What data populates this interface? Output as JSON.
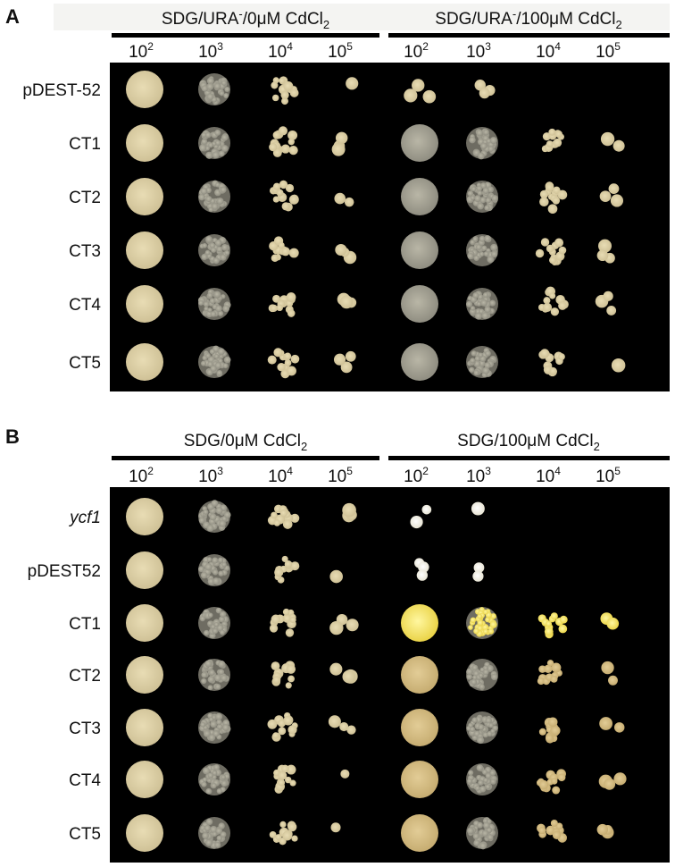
{
  "panels": [
    {
      "label": "A",
      "headers": [
        {
          "text": "SDG/URA",
          "sup": "-",
          "text2": "/0μM CdCl",
          "sub": "2"
        },
        {
          "text": "SDG/URA",
          "sup": "-",
          "text2": "/100μM CdCl",
          "sub": "2"
        }
      ],
      "dilutions": [
        {
          "base": "10",
          "exp": "2"
        },
        {
          "base": "10",
          "exp": "3"
        },
        {
          "base": "10",
          "exp": "4"
        },
        {
          "base": "10",
          "exp": "5"
        },
        {
          "base": "10",
          "exp": "2"
        },
        {
          "base": "10",
          "exp": "3"
        },
        {
          "base": "10",
          "exp": "4"
        },
        {
          "base": "10",
          "exp": "5"
        }
      ],
      "rows": [
        "pDEST-52",
        "CT1",
        "CT2",
        "CT3",
        "CT4",
        "CT5"
      ]
    },
    {
      "label": "B",
      "headers": [
        {
          "text": "SDG/0μM CdCl",
          "sub": "2"
        },
        {
          "text": "SDG/100μM CdCl",
          "sub": "2"
        }
      ],
      "dilutions": [
        {
          "base": "10",
          "exp": "2"
        },
        {
          "base": "10",
          "exp": "3"
        },
        {
          "base": "10",
          "exp": "4"
        },
        {
          "base": "10",
          "exp": "5"
        },
        {
          "base": "10",
          "exp": "2"
        },
        {
          "base": "10",
          "exp": "3"
        },
        {
          "base": "10",
          "exp": "4"
        },
        {
          "base": "10",
          "exp": "5"
        }
      ],
      "rows": [
        "ycf1",
        "pDEST52",
        "CT1",
        "CT2",
        "CT3",
        "CT4",
        "CT5"
      ]
    }
  ]
}
